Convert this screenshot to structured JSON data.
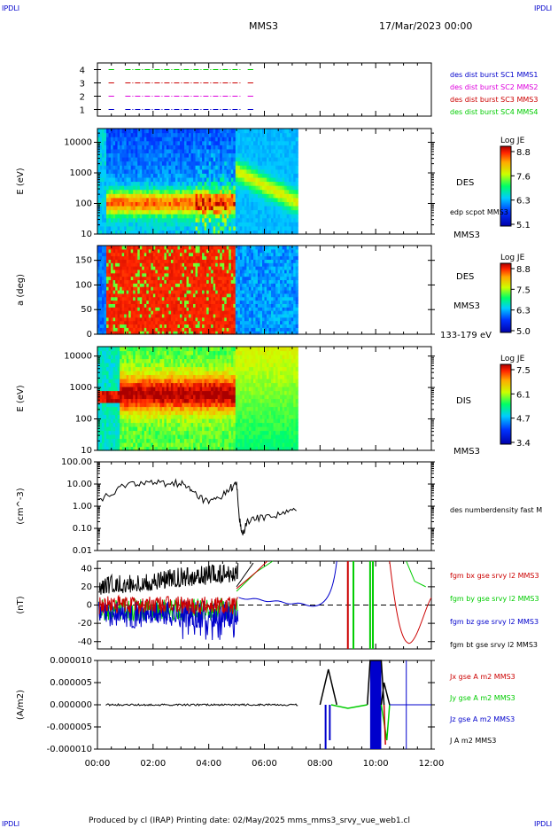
{
  "header": {
    "corner_tl": "IPDLI",
    "corner_tr": "IPDLI",
    "corner_bl": "IPDLI",
    "corner_br": "IPDLI",
    "title": "MMS3",
    "date": "17/Mar/2023 00:00"
  },
  "footer": {
    "text": "Produced by cl (IRAP)   Printing date: 02/May/2025   mms_mms3_srvy_vue_web1.cl"
  },
  "x_axis": {
    "ticks": [
      "00:00",
      "02:00",
      "04:00",
      "06:00",
      "08:00",
      "10:00",
      "12:00"
    ]
  },
  "colors": {
    "blue": "#0000cc",
    "magenta": "#dd00dd",
    "red": "#cc0000",
    "green": "#00cc00",
    "black": "#000000"
  },
  "chart_data": [
    {
      "type": "line",
      "name": "burst-coverage",
      "ylim": [
        0.5,
        4.5
      ],
      "y_ticks": [
        "1",
        "2",
        "3",
        "4"
      ],
      "legend": [
        {
          "label": "des dist burst SC1 MMS1",
          "color": "#0000cc"
        },
        {
          "label": "des dist burst SC2 MMS2",
          "color": "#dd00dd"
        },
        {
          "label": "des dist burst SC3 MMS3",
          "color": "#cc0000"
        },
        {
          "label": "des dist burst SC4 MMS4",
          "color": "#00cc00"
        }
      ],
      "series": [
        {
          "level": 1,
          "color": "#0000cc",
          "intervals": [
            [
              0.4,
              0.6
            ],
            [
              1.0,
              5.2
            ],
            [
              5.4,
              5.6
            ]
          ]
        },
        {
          "level": 2,
          "color": "#dd00dd",
          "intervals": [
            [
              0.4,
              0.6
            ],
            [
              1.0,
              5.2
            ],
            [
              5.4,
              5.6
            ]
          ]
        },
        {
          "level": 3,
          "color": "#cc0000",
          "intervals": [
            [
              0.4,
              0.6
            ],
            [
              1.0,
              5.2
            ],
            [
              5.4,
              5.6
            ]
          ]
        },
        {
          "level": 4,
          "color": "#00cc00",
          "intervals": [
            [
              0.4,
              0.6
            ],
            [
              1.0,
              5.2
            ],
            [
              5.4,
              5.6
            ]
          ]
        }
      ]
    },
    {
      "type": "heatmap",
      "name": "des-energy",
      "ylabel": "E (eV)",
      "y_scale": "log",
      "y_ticks": [
        "10",
        "100",
        "1000",
        "10000"
      ],
      "right_label": "DES",
      "right_sublabel": "edp scpot MMS3",
      "bottom_label": "MMS3",
      "colorbar": {
        "title": "Log JE",
        "ticks": [
          "8.8",
          "7.6",
          "6.3",
          "5.1"
        ]
      },
      "data_end_hours": 7.2
    },
    {
      "type": "heatmap",
      "name": "des-pitch-angle",
      "ylabel": "a (deg)",
      "y_ticks": [
        "0",
        "50",
        "100",
        "150"
      ],
      "ylim": [
        0,
        180
      ],
      "right_label": "DES",
      "right_sublabel": "MMS3",
      "bottom_label": "133-179 eV",
      "colorbar": {
        "title": "Log JE",
        "ticks": [
          "8.8",
          "7.5",
          "6.3",
          "5.0"
        ]
      },
      "data_end_hours": 7.2
    },
    {
      "type": "heatmap",
      "name": "dis-energy",
      "ylabel": "E (eV)",
      "y_scale": "log",
      "y_ticks": [
        "10",
        "100",
        "1000",
        "10000"
      ],
      "right_label": "DIS",
      "bottom_label": "MMS3",
      "colorbar": {
        "title": "Log JE",
        "ticks": [
          "7.5",
          "6.1",
          "4.7",
          "3.4"
        ]
      },
      "data_end_hours": 7.2
    },
    {
      "type": "line",
      "name": "density",
      "ylabel": "(cm^-3)",
      "y_scale": "log",
      "y_ticks": [
        "0.01",
        "0.10",
        "1.00",
        "10.00",
        "100.00"
      ],
      "legend": [
        {
          "label": "des numberdensity fast M",
          "color": "#000000"
        }
      ],
      "series": [
        {
          "name": "des numberdensity fast M",
          "x": [
            0.0,
            0.5,
            1.0,
            1.5,
            2.0,
            2.5,
            3.0,
            3.3,
            3.6,
            4.0,
            4.4,
            4.8,
            5.0,
            5.1,
            5.2,
            5.4,
            5.8,
            6.3,
            6.8,
            7.2
          ],
          "y": [
            2.0,
            3.0,
            10.0,
            12.0,
            11.0,
            11.0,
            11.0,
            6.0,
            3.0,
            1.5,
            2.5,
            7.0,
            10.0,
            0.3,
            0.05,
            0.2,
            0.3,
            0.4,
            0.5,
            0.8
          ]
        }
      ]
    },
    {
      "type": "line",
      "name": "magnetic-field",
      "ylabel": "(nT)",
      "y_ticks": [
        "-40",
        "-20",
        "0",
        "20",
        "40"
      ],
      "ylim": [
        -48,
        48
      ],
      "legend": [
        {
          "label": "fgm bx gse srvy l2 MMS3",
          "color": "#cc0000"
        },
        {
          "label": "fgm by gse srvy l2 MMS3",
          "color": "#00cc00"
        },
        {
          "label": "fgm bz gse srvy l2 MMS3",
          "color": "#0000cc"
        },
        {
          "label": "fgm bt gse srvy l2 MMS3",
          "color": "#000000"
        }
      ]
    },
    {
      "type": "line",
      "name": "current-density",
      "ylabel": "(A/m2)",
      "y_ticks": [
        "-0.000010",
        "-0.000005",
        "0.000000",
        "0.000005",
        "0.000010"
      ],
      "ylim": [
        -1e-05,
        1e-05
      ],
      "legend": [
        {
          "label": "Jx gse A m2 MMS3",
          "color": "#cc0000"
        },
        {
          "label": "Jy gse A m2 MMS3",
          "color": "#00cc00"
        },
        {
          "label": "Jz gse A m2 MMS3",
          "color": "#0000cc"
        },
        {
          "label": "J A m2 MMS3",
          "color": "#000000"
        }
      ]
    }
  ]
}
